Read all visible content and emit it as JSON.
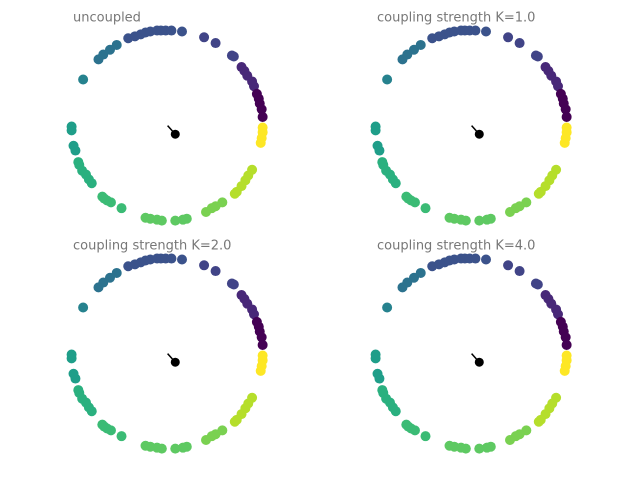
{
  "chart_data": [
    {
      "type": "scatter",
      "title": "uncoupled",
      "xlim": [
        -1.1,
        1.1
      ],
      "ylim": [
        -1.1,
        1.1
      ],
      "arrow": [
        0.08,
        -0.09
      ],
      "series": [
        {
          "color": "#3b528b",
          "x": [
            -0.41,
            -0.34,
            -0.28,
            -0.23,
            -0.18,
            -0.11,
            -0.07,
            -0.02,
            0.04,
            0.15
          ],
          "values": [
            0.91,
            0.93,
            0.95,
            0.97,
            0.98,
            0.99,
            0.99,
            0.99,
            0.99,
            0.98
          ]
        },
        {
          "color": "#414487",
          "x": [
            0.38,
            0.5,
            0.67,
            0.69
          ],
          "values": [
            0.92,
            0.86,
            0.73,
            0.72
          ]
        },
        {
          "color": "#482878",
          "x": [
            0.77,
            0.8,
            0.83,
            0.88,
            0.9
          ],
          "values": [
            0.61,
            0.57,
            0.52,
            0.46,
            0.41
          ]
        },
        {
          "color": "#440154",
          "x": [
            0.93,
            0.95,
            0.96,
            0.98,
            0.99
          ],
          "values": [
            0.33,
            0.28,
            0.23,
            0.17,
            0.09
          ]
        },
        {
          "color": "#fde725",
          "x": [
            0.99,
            0.99,
            0.98,
            0.97
          ],
          "values": [
            -0.02,
            -0.07,
            -0.13,
            -0.18
          ]
        },
        {
          "color": "#b5de2b",
          "x": [
            0.88,
            0.84,
            0.81,
            0.77,
            0.72,
            0.7
          ],
          "values": [
            -0.46,
            -0.52,
            -0.57,
            -0.63,
            -0.69,
            -0.71
          ]
        },
        {
          "color": "#7ad151",
          "x": [
            0.57,
            0.5,
            0.46,
            0.4
          ],
          "values": [
            -0.8,
            -0.84,
            -0.86,
            -0.9
          ]
        },
        {
          "color": "#5ec962",
          "x": [
            0.2,
            0.16,
            0.08,
            -0.06,
            -0.11,
            -0.18,
            -0.23
          ],
          "values": [
            -0.97,
            -0.98,
            -0.99,
            -0.99,
            -0.98,
            -0.97,
            -0.96
          ]
        },
        {
          "color": "#3bbb75",
          "x": [
            -0.48,
            -0.59,
            -0.63,
            -0.66,
            -0.68
          ],
          "values": [
            -0.86,
            -0.8,
            -0.78,
            -0.76,
            -0.74
          ]
        },
        {
          "color": "#2ab07f",
          "x": [
            -0.79,
            -0.82,
            -0.85,
            -0.89,
            -0.92,
            -0.93
          ],
          "values": [
            -0.6,
            -0.56,
            -0.51,
            -0.47,
            -0.41,
            -0.38
          ]
        },
        {
          "color": "#1f9e89",
          "x": [
            -0.96,
            -0.98,
            -1.0,
            -1.0
          ],
          "values": [
            -0.26,
            -0.21,
            -0.05,
            -0.01
          ]
        },
        {
          "color": "#26828e",
          "x": [
            -0.88
          ],
          "values": [
            0.48
          ]
        },
        {
          "color": "#2c728e",
          "x": [
            -0.72,
            -0.67,
            -0.6,
            -0.53
          ],
          "values": [
            0.69,
            0.74,
            0.79,
            0.84
          ]
        }
      ]
    },
    {
      "type": "scatter",
      "title": "coupling strength K=1.0",
      "xlim": [
        -1.1,
        1.1
      ],
      "ylim": [
        -1.1,
        1.1
      ],
      "arrow": [
        0.08,
        -0.09
      ],
      "series": [
        {
          "color": "#3b528b",
          "x": [
            -0.41,
            -0.34,
            -0.28,
            -0.23,
            -0.18,
            -0.11,
            -0.07,
            -0.02,
            0.04,
            0.15
          ],
          "values": [
            0.91,
            0.93,
            0.95,
            0.97,
            0.98,
            0.99,
            0.99,
            0.99,
            0.99,
            0.98
          ]
        },
        {
          "color": "#414487",
          "x": [
            0.38,
            0.5,
            0.67,
            0.69
          ],
          "values": [
            0.92,
            0.86,
            0.73,
            0.72
          ]
        },
        {
          "color": "#482878",
          "x": [
            0.77,
            0.8,
            0.83,
            0.88,
            0.9
          ],
          "values": [
            0.61,
            0.57,
            0.52,
            0.46,
            0.41
          ]
        },
        {
          "color": "#440154",
          "x": [
            0.93,
            0.95,
            0.96,
            0.98,
            0.99
          ],
          "values": [
            0.33,
            0.28,
            0.23,
            0.17,
            0.09
          ]
        },
        {
          "color": "#fde725",
          "x": [
            0.99,
            0.99,
            0.98,
            0.97
          ],
          "values": [
            -0.02,
            -0.07,
            -0.13,
            -0.18
          ]
        },
        {
          "color": "#b5de2b",
          "x": [
            0.88,
            0.84,
            0.81,
            0.77,
            0.72,
            0.7
          ],
          "values": [
            -0.46,
            -0.52,
            -0.57,
            -0.63,
            -0.69,
            -0.71
          ]
        },
        {
          "color": "#7ad151",
          "x": [
            0.57,
            0.5,
            0.46,
            0.4
          ],
          "values": [
            -0.8,
            -0.84,
            -0.86,
            -0.9
          ]
        },
        {
          "color": "#5ec962",
          "x": [
            0.2,
            0.16,
            0.08,
            -0.06,
            -0.11,
            -0.18,
            -0.23
          ],
          "values": [
            -0.97,
            -0.98,
            -0.99,
            -0.99,
            -0.98,
            -0.97,
            -0.96
          ]
        },
        {
          "color": "#3bbb75",
          "x": [
            -0.48,
            -0.59,
            -0.63,
            -0.66,
            -0.68
          ],
          "values": [
            -0.86,
            -0.8,
            -0.78,
            -0.76,
            -0.74
          ]
        },
        {
          "color": "#2ab07f",
          "x": [
            -0.79,
            -0.82,
            -0.85,
            -0.89,
            -0.92,
            -0.93
          ],
          "values": [
            -0.6,
            -0.56,
            -0.51,
            -0.47,
            -0.41,
            -0.38
          ]
        },
        {
          "color": "#1f9e89",
          "x": [
            -0.96,
            -0.98,
            -1.0,
            -1.0
          ],
          "values": [
            -0.26,
            -0.21,
            -0.05,
            -0.01
          ]
        },
        {
          "color": "#26828e",
          "x": [
            -0.88
          ],
          "values": [
            0.48
          ]
        },
        {
          "color": "#2c728e",
          "x": [
            -0.72,
            -0.67,
            -0.6,
            -0.53
          ],
          "values": [
            0.69,
            0.74,
            0.79,
            0.84
          ]
        }
      ]
    },
    {
      "type": "scatter",
      "title": "coupling strength K=2.0",
      "xlim": [
        -1.1,
        1.1
      ],
      "ylim": [
        -1.1,
        1.1
      ],
      "arrow": [
        0.08,
        -0.09
      ],
      "series": [
        {
          "color": "#3b528b",
          "x": [
            -0.41,
            -0.34,
            -0.28,
            -0.23,
            -0.18,
            -0.11,
            -0.07,
            -0.02,
            0.04,
            0.15
          ],
          "values": [
            0.91,
            0.93,
            0.95,
            0.97,
            0.98,
            0.99,
            0.99,
            0.99,
            0.99,
            0.98
          ]
        },
        {
          "color": "#414487",
          "x": [
            0.38,
            0.5,
            0.67,
            0.69
          ],
          "values": [
            0.92,
            0.86,
            0.73,
            0.72
          ]
        },
        {
          "color": "#482878",
          "x": [
            0.77,
            0.8,
            0.83,
            0.88,
            0.9
          ],
          "values": [
            0.61,
            0.57,
            0.52,
            0.46,
            0.41
          ]
        },
        {
          "color": "#440154",
          "x": [
            0.93,
            0.95,
            0.96,
            0.98,
            0.99
          ],
          "values": [
            0.33,
            0.28,
            0.23,
            0.17,
            0.09
          ]
        },
        {
          "color": "#fde725",
          "x": [
            0.99,
            0.99,
            0.98,
            0.97
          ],
          "values": [
            -0.02,
            -0.07,
            -0.13,
            -0.18
          ]
        },
        {
          "color": "#b5de2b",
          "x": [
            0.88,
            0.84,
            0.81,
            0.77,
            0.72,
            0.7
          ],
          "values": [
            -0.46,
            -0.52,
            -0.57,
            -0.63,
            -0.69,
            -0.71
          ]
        },
        {
          "color": "#7ad151",
          "x": [
            0.57,
            0.5,
            0.46,
            0.4
          ],
          "values": [
            -0.8,
            -0.84,
            -0.86,
            -0.9
          ]
        },
        {
          "color": "#5ec962",
          "x": [
            0.2,
            0.16,
            0.08,
            -0.06,
            -0.11,
            -0.18,
            -0.23
          ],
          "values": [
            -0.97,
            -0.98,
            -0.99,
            -0.99,
            -0.98,
            -0.97,
            -0.96
          ]
        },
        {
          "color": "#3bbb75",
          "x": [
            -0.48,
            -0.59,
            -0.63,
            -0.66,
            -0.68
          ],
          "values": [
            -0.86,
            -0.8,
            -0.78,
            -0.76,
            -0.74
          ]
        },
        {
          "color": "#2ab07f",
          "x": [
            -0.79,
            -0.82,
            -0.85,
            -0.89,
            -0.92,
            -0.93
          ],
          "values": [
            -0.6,
            -0.56,
            -0.51,
            -0.47,
            -0.41,
            -0.38
          ]
        },
        {
          "color": "#1f9e89",
          "x": [
            -0.96,
            -0.98,
            -1.0,
            -1.0
          ],
          "values": [
            -0.26,
            -0.21,
            -0.05,
            -0.01
          ]
        },
        {
          "color": "#26828e",
          "x": [
            -0.88
          ],
          "values": [
            0.48
          ]
        },
        {
          "color": "#2c728e",
          "x": [
            -0.72,
            -0.67,
            -0.6,
            -0.53
          ],
          "values": [
            0.69,
            0.74,
            0.79,
            0.84
          ]
        }
      ]
    },
    {
      "type": "scatter",
      "title": "coupling strength K=4.0",
      "xlim": [
        -1.1,
        1.1
      ],
      "ylim": [
        -1.1,
        1.1
      ],
      "arrow": [
        0.08,
        -0.09
      ],
      "series": [
        {
          "color": "#3b528b",
          "x": [
            -0.41,
            -0.34,
            -0.28,
            -0.23,
            -0.18,
            -0.11,
            -0.07,
            -0.02,
            0.04,
            0.15
          ],
          "values": [
            0.91,
            0.93,
            0.95,
            0.97,
            0.98,
            0.99,
            0.99,
            0.99,
            0.99,
            0.98
          ]
        },
        {
          "color": "#414487",
          "x": [
            0.38,
            0.5,
            0.67,
            0.69
          ],
          "values": [
            0.92,
            0.86,
            0.73,
            0.72
          ]
        },
        {
          "color": "#482878",
          "x": [
            0.77,
            0.8,
            0.83,
            0.88,
            0.9
          ],
          "values": [
            0.61,
            0.57,
            0.52,
            0.46,
            0.41
          ]
        },
        {
          "color": "#440154",
          "x": [
            0.93,
            0.95,
            0.96,
            0.98,
            0.99
          ],
          "values": [
            0.33,
            0.28,
            0.23,
            0.17,
            0.09
          ]
        },
        {
          "color": "#fde725",
          "x": [
            0.99,
            0.99,
            0.98,
            0.97
          ],
          "values": [
            -0.02,
            -0.07,
            -0.13,
            -0.18
          ]
        },
        {
          "color": "#b5de2b",
          "x": [
            0.88,
            0.84,
            0.81,
            0.77,
            0.72,
            0.7
          ],
          "values": [
            -0.46,
            -0.52,
            -0.57,
            -0.63,
            -0.69,
            -0.71
          ]
        },
        {
          "color": "#7ad151",
          "x": [
            0.57,
            0.5,
            0.46,
            0.4
          ],
          "values": [
            -0.8,
            -0.84,
            -0.86,
            -0.9
          ]
        },
        {
          "color": "#5ec962",
          "x": [
            0.2,
            0.16,
            0.08,
            -0.06,
            -0.11,
            -0.18,
            -0.23
          ],
          "values": [
            -0.97,
            -0.98,
            -0.99,
            -0.99,
            -0.98,
            -0.97,
            -0.96
          ]
        },
        {
          "color": "#3bbb75",
          "x": [
            -0.48,
            -0.59,
            -0.63,
            -0.66,
            -0.68
          ],
          "values": [
            -0.86,
            -0.8,
            -0.78,
            -0.76,
            -0.74
          ]
        },
        {
          "color": "#2ab07f",
          "x": [
            -0.79,
            -0.82,
            -0.85,
            -0.89,
            -0.92,
            -0.93
          ],
          "values": [
            -0.6,
            -0.56,
            -0.51,
            -0.47,
            -0.41,
            -0.38
          ]
        },
        {
          "color": "#1f9e89",
          "x": [
            -0.96,
            -0.98,
            -1.0,
            -1.0
          ],
          "values": [
            -0.26,
            -0.21,
            -0.05,
            -0.01
          ]
        },
        {
          "color": "#26828e",
          "x": [
            -0.88
          ],
          "values": [
            0.48
          ]
        },
        {
          "color": "#2c728e",
          "x": [
            -0.72,
            -0.67,
            -0.6,
            -0.53
          ],
          "values": [
            0.69,
            0.74,
            0.79,
            0.84
          ]
        }
      ]
    }
  ]
}
